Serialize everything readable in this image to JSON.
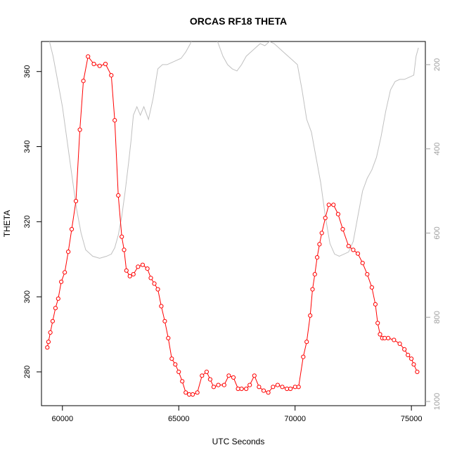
{
  "chart_data": {
    "type": "line",
    "title": "ORCAS RF18 THETA",
    "xlabel": "UTC Seconds",
    "ylabel": "THETA",
    "xlim": [
      59100,
      75600
    ],
    "ylim": [
      271,
      368
    ],
    "y2lim": [
      1010,
      145
    ],
    "x_ticks": [
      60000,
      65000,
      70000,
      75000
    ],
    "y_ticks": [
      280,
      300,
      320,
      340,
      360
    ],
    "y2_ticks": [
      200,
      400,
      600,
      800,
      1000
    ],
    "grid": false,
    "colors": {
      "theta": "#ff0000",
      "pressure": "#c0c0c0"
    },
    "series": [
      {
        "axis": "left",
        "style": "line+points",
        "x": [
          59350,
          59400,
          59480,
          59580,
          59700,
          59820,
          59950,
          60100,
          60250,
          60400,
          60580,
          60750,
          60900,
          61100,
          61350,
          61600,
          61850,
          62100,
          62250,
          62400,
          62550,
          62650,
          62750,
          62900,
          63050,
          63250,
          63450,
          63650,
          63800,
          63950,
          64100,
          64250,
          64400,
          64550,
          64700,
          64850,
          65000,
          65150,
          65300,
          65450,
          65600,
          65800,
          66000,
          66200,
          66350,
          66500,
          66700,
          66950,
          67150,
          67350,
          67550,
          67700,
          67900,
          68050,
          68250,
          68450,
          68650,
          68850,
          69050,
          69250,
          69450,
          69650,
          69800,
          70000,
          70150,
          70350,
          70500,
          70650,
          70750,
          70850,
          70950,
          71050,
          71150,
          71300,
          71450,
          71650,
          71850,
          72050,
          72300,
          72500,
          72700,
          72900,
          73100,
          73300,
          73450,
          73550,
          73650,
          73750,
          73850,
          74000,
          74250,
          74500,
          74700,
          74850,
          75000,
          75100,
          75250
        ],
        "y": [
          286.5,
          288,
          290.5,
          293.5,
          297,
          299.5,
          304,
          306.5,
          312,
          318,
          325.5,
          344.5,
          357.5,
          364,
          362,
          361.5,
          362,
          359,
          347,
          327,
          316,
          312.5,
          307,
          305.5,
          306,
          308,
          308.5,
          307.5,
          305,
          303.5,
          302,
          297.5,
          293.5,
          289,
          283.5,
          282,
          280,
          277.5,
          274.5,
          274,
          274,
          274.5,
          279,
          280,
          278,
          276,
          276.5,
          276.5,
          279,
          278.5,
          275.5,
          275.5,
          275.5,
          276.5,
          279,
          276,
          275,
          274.5,
          276,
          276.5,
          276,
          275.5,
          275.5,
          276,
          276,
          284,
          288,
          295,
          302,
          306,
          310.5,
          314,
          317,
          321,
          324.5,
          324.5,
          322,
          318,
          313.5,
          312.5,
          311.5,
          309,
          306,
          302.5,
          298,
          293,
          290,
          289,
          289,
          289,
          288.5,
          287.5,
          286,
          284.5,
          283.5,
          282,
          280
        ]
      },
      {
        "axis": "right",
        "style": "line",
        "x": [
          59100,
          59250,
          59400,
          59600,
          59800,
          60000,
          60200,
          60400,
          60600,
          60800,
          61000,
          61300,
          61600,
          61900,
          62100,
          62250,
          62400,
          62550,
          62700,
          62850,
          62950,
          63050,
          63200,
          63350,
          63500,
          63700,
          63900,
          64100,
          64300,
          64500,
          64700,
          64900,
          65100,
          65300,
          65500,
          65700,
          65900,
          66100,
          66300,
          66500,
          66700,
          66900,
          67100,
          67300,
          67500,
          67700,
          67900,
          68100,
          68300,
          68500,
          68700,
          68900,
          69100,
          69300,
          69500,
          69700,
          69900,
          70100,
          70300,
          70500,
          70700,
          70900,
          71100,
          71300,
          71500,
          71700,
          71900,
          72100,
          72300,
          72500,
          72700,
          72900,
          73100,
          73300,
          73500,
          73700,
          73900,
          74100,
          74300,
          74500,
          74700,
          74900,
          75100,
          75200,
          75300
        ],
        "y": [
          60,
          95,
          135,
          180,
          240,
          300,
          380,
          460,
          540,
          600,
          640,
          655,
          660,
          655,
          650,
          635,
          605,
          560,
          500,
          430,
          380,
          320,
          300,
          320,
          300,
          330,
          280,
          210,
          200,
          200,
          195,
          190,
          185,
          170,
          150,
          120,
          100,
          95,
          110,
          125,
          150,
          180,
          200,
          210,
          215,
          200,
          180,
          170,
          160,
          150,
          155,
          145,
          150,
          160,
          170,
          180,
          190,
          200,
          260,
          330,
          360,
          420,
          480,
          560,
          625,
          650,
          655,
          650,
          645,
          620,
          560,
          500,
          470,
          450,
          420,
          370,
          310,
          260,
          240,
          235,
          235,
          230,
          225,
          180,
          160
        ]
      }
    ]
  }
}
